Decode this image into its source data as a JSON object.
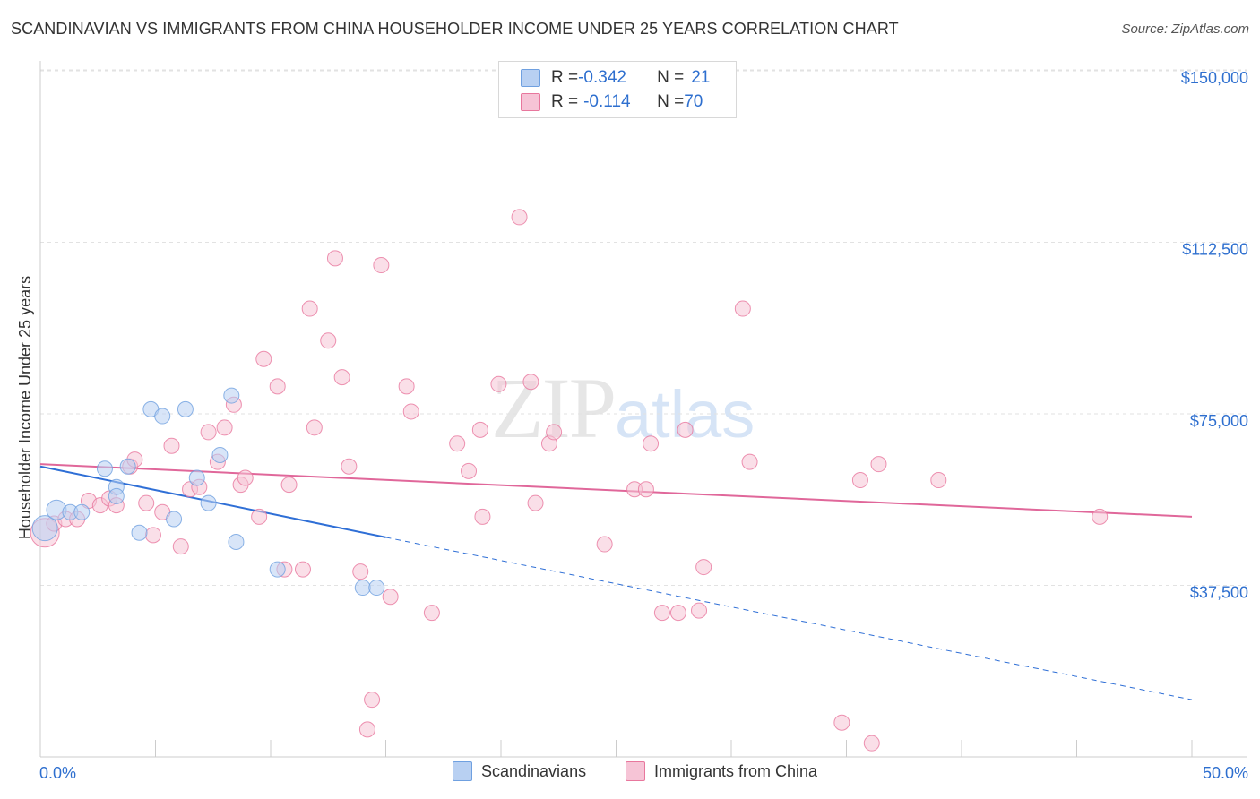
{
  "title": "SCANDINAVIAN VS IMMIGRANTS FROM CHINA HOUSEHOLDER INCOME UNDER 25 YEARS CORRELATION CHART",
  "source": "Source: ZipAtlas.com",
  "watermark": {
    "zip": "ZIP",
    "atlas": "atlas"
  },
  "colors": {
    "blue": "#6fa0e0",
    "blue_fill": "#b8d0f2",
    "pink": "#e8779d",
    "pink_fill": "#f6c4d6",
    "axis_text": "#2e6fcf"
  },
  "legend": {
    "rows": [
      {
        "r_label": "R = ",
        "r_value": "-0.342",
        "n_label": "N = ",
        "n_value": "21"
      },
      {
        "r_label": "R = ",
        "r_value": "-0.114",
        "n_label": "N = ",
        "n_value": "70"
      }
    ]
  },
  "bottom_legend": [
    "Scandinavians",
    "Immigrants from China"
  ],
  "chart_data": {
    "type": "scatter",
    "ylabel": "Householder Income Under 25 years",
    "xlabel": "",
    "xlim": [
      0,
      50
    ],
    "ylim": [
      0,
      155000
    ],
    "x_tick_labels": {
      "left": "0.0%",
      "right": "50.0%"
    },
    "y_ticks": [
      {
        "value": 37500,
        "label": "$37,500"
      },
      {
        "value": 75000,
        "label": "$75,000"
      },
      {
        "value": 112500,
        "label": "$112,500"
      },
      {
        "value": 150000,
        "label": "$150,000"
      }
    ],
    "series": [
      {
        "name": "Scandinavians",
        "r": -0.342,
        "n": 21,
        "trend": {
          "x0": 0,
          "y0": 63500,
          "x1": 15,
          "y1": 48000,
          "dash_to_x": 50,
          "dash_to_y": 12500
        },
        "points": [
          [
            0.2,
            50000,
            "lg"
          ],
          [
            0.7,
            54000,
            "md"
          ],
          [
            1.3,
            53500
          ],
          [
            1.8,
            53500
          ],
          [
            2.8,
            63000
          ],
          [
            3.3,
            59000
          ],
          [
            3.3,
            57000
          ],
          [
            3.8,
            63500
          ],
          [
            4.3,
            49000
          ],
          [
            4.8,
            76000
          ],
          [
            5.3,
            74500
          ],
          [
            5.8,
            52000
          ],
          [
            6.3,
            76000
          ],
          [
            6.8,
            61000
          ],
          [
            7.3,
            55500
          ],
          [
            7.8,
            66000
          ],
          [
            8.3,
            79000
          ],
          [
            8.5,
            47000
          ],
          [
            10.3,
            41000
          ],
          [
            14.0,
            37000
          ],
          [
            14.6,
            37000
          ]
        ]
      },
      {
        "name": "Immigrants from China",
        "r": -0.114,
        "n": 70,
        "trend": {
          "x0": 0,
          "y0": 64000,
          "x1": 50,
          "y1": 52500
        },
        "points": [
          [
            0.2,
            49000,
            "xl"
          ],
          [
            0.6,
            51000
          ],
          [
            1.1,
            52000
          ],
          [
            1.6,
            52000
          ],
          [
            2.1,
            56000
          ],
          [
            2.6,
            55000
          ],
          [
            3.0,
            56500
          ],
          [
            3.3,
            55000
          ],
          [
            3.9,
            63500
          ],
          [
            4.1,
            65000
          ],
          [
            4.6,
            55500
          ],
          [
            4.9,
            48500
          ],
          [
            5.3,
            53500
          ],
          [
            5.7,
            68000
          ],
          [
            6.1,
            46000
          ],
          [
            6.5,
            58500
          ],
          [
            6.9,
            59000
          ],
          [
            7.3,
            71000
          ],
          [
            7.7,
            64500
          ],
          [
            8.0,
            72000
          ],
          [
            8.4,
            77000
          ],
          [
            8.7,
            59500
          ],
          [
            8.9,
            61000
          ],
          [
            9.5,
            52500
          ],
          [
            9.7,
            87000
          ],
          [
            10.3,
            81000
          ],
          [
            10.6,
            41000
          ],
          [
            10.8,
            59500
          ],
          [
            11.4,
            41000
          ],
          [
            11.7,
            98000
          ],
          [
            11.9,
            72000
          ],
          [
            12.5,
            91000
          ],
          [
            12.8,
            109000
          ],
          [
            13.1,
            83000
          ],
          [
            13.4,
            63500
          ],
          [
            13.9,
            40500
          ],
          [
            14.2,
            6000
          ],
          [
            14.4,
            12500
          ],
          [
            14.8,
            107500
          ],
          [
            15.2,
            35000
          ],
          [
            15.9,
            81000
          ],
          [
            16.1,
            75500
          ],
          [
            17.0,
            31500
          ],
          [
            18.1,
            68500
          ],
          [
            18.6,
            62500
          ],
          [
            19.1,
            71500
          ],
          [
            19.2,
            52500
          ],
          [
            19.9,
            81500
          ],
          [
            20.8,
            118000
          ],
          [
            21.3,
            82000
          ],
          [
            21.5,
            55500
          ],
          [
            22.1,
            68500
          ],
          [
            22.3,
            71000
          ],
          [
            24.5,
            46500
          ],
          [
            25.8,
            58500
          ],
          [
            26.3,
            58500
          ],
          [
            26.5,
            68500
          ],
          [
            27.0,
            31500
          ],
          [
            27.7,
            31500
          ],
          [
            28.0,
            71500
          ],
          [
            28.6,
            32000
          ],
          [
            28.8,
            41500
          ],
          [
            30.5,
            98000
          ],
          [
            30.8,
            64500
          ],
          [
            34.8,
            7500
          ],
          [
            35.6,
            60500
          ],
          [
            36.1,
            3000
          ],
          [
            36.4,
            64000
          ],
          [
            39.0,
            60500
          ],
          [
            46.0,
            52500
          ]
        ]
      }
    ]
  }
}
